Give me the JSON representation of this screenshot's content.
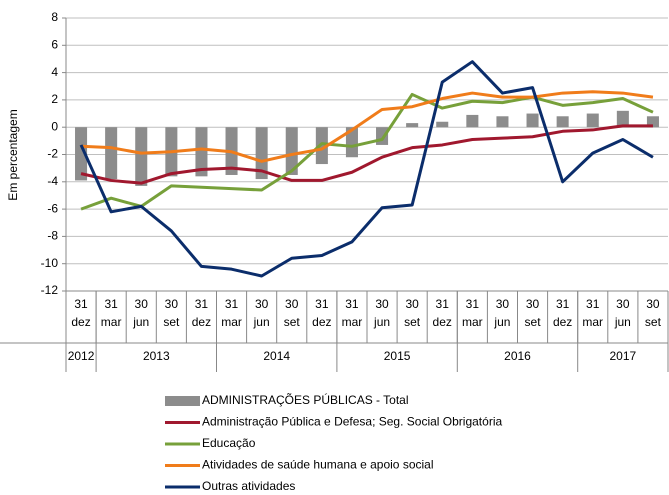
{
  "chart_data": {
    "type": "combo",
    "y_label": "Em percentagem",
    "categories": [
      "31 dez",
      "31 mar",
      "30 jun",
      "30 set",
      "31 dez",
      "31 mar",
      "30 jun",
      "30 set",
      "31 dez",
      "31 mar",
      "30 jun",
      "30 set",
      "31 dez",
      "31 mar",
      "30 jun",
      "30 set",
      "31 dez",
      "31 mar",
      "30 jun",
      "30 set"
    ],
    "years": [
      {
        "label": "2012",
        "span": 1
      },
      {
        "label": "2013",
        "span": 4
      },
      {
        "label": "2014",
        "span": 4
      },
      {
        "label": "2015",
        "span": 4
      },
      {
        "label": "2016",
        "span": 4
      },
      {
        "label": "2017",
        "span": 3
      }
    ],
    "ylim": [
      -12,
      8
    ],
    "yticks": [
      -12,
      -10,
      -8,
      -6,
      -4,
      -2,
      0,
      2,
      4,
      6,
      8
    ],
    "grid": true,
    "series": [
      {
        "name": "ADMINISTRAÇÕES PÚBLICAS - Total",
        "type": "bar",
        "color": "#8c8c8c",
        "values": [
          -3.9,
          -3.8,
          -4.3,
          -3.6,
          -3.6,
          -3.5,
          -3.8,
          -3.5,
          -2.7,
          -2.2,
          -1.3,
          0.3,
          0.4,
          0.9,
          0.8,
          1.0,
          0.8,
          1.0,
          1.2,
          0.8
        ]
      },
      {
        "name": "Administração Pública e Defesa; Seg. Social Obrigatória",
        "type": "line",
        "color": "#a0182e",
        "values": [
          -3.4,
          -3.9,
          -4.1,
          -3.4,
          -3.1,
          -3.0,
          -3.2,
          -3.9,
          -3.9,
          -3.3,
          -2.2,
          -1.5,
          -1.3,
          -0.9,
          -0.8,
          -0.7,
          -0.3,
          -0.2,
          0.1,
          0.1
        ]
      },
      {
        "name": "Educação",
        "type": "line",
        "color": "#77a03a",
        "values": [
          -6.0,
          -5.2,
          -5.8,
          -4.3,
          -4.4,
          -4.5,
          -4.6,
          -3.2,
          -1.2,
          -1.4,
          -0.9,
          2.4,
          1.4,
          1.9,
          1.8,
          2.2,
          1.6,
          1.8,
          2.1,
          1.1
        ]
      },
      {
        "name": "Atividades de saúde humana e apoio social",
        "type": "line",
        "color": "#f07c1a",
        "values": [
          -1.4,
          -1.5,
          -1.9,
          -1.8,
          -1.6,
          -1.8,
          -2.5,
          -2.0,
          -1.6,
          -0.2,
          1.3,
          1.5,
          2.1,
          2.5,
          2.2,
          2.2,
          2.5,
          2.6,
          2.5,
          2.2
        ]
      },
      {
        "name": "Outras atividades",
        "type": "line",
        "color": "#0b2d6b",
        "values": [
          -1.3,
          -6.2,
          -5.8,
          -7.6,
          -10.2,
          -10.4,
          -10.9,
          -9.6,
          -9.4,
          -8.4,
          -5.9,
          -5.7,
          3.3,
          4.8,
          2.5,
          2.9,
          -4.0,
          -1.9,
          -0.9,
          -2.2
        ]
      }
    ]
  }
}
